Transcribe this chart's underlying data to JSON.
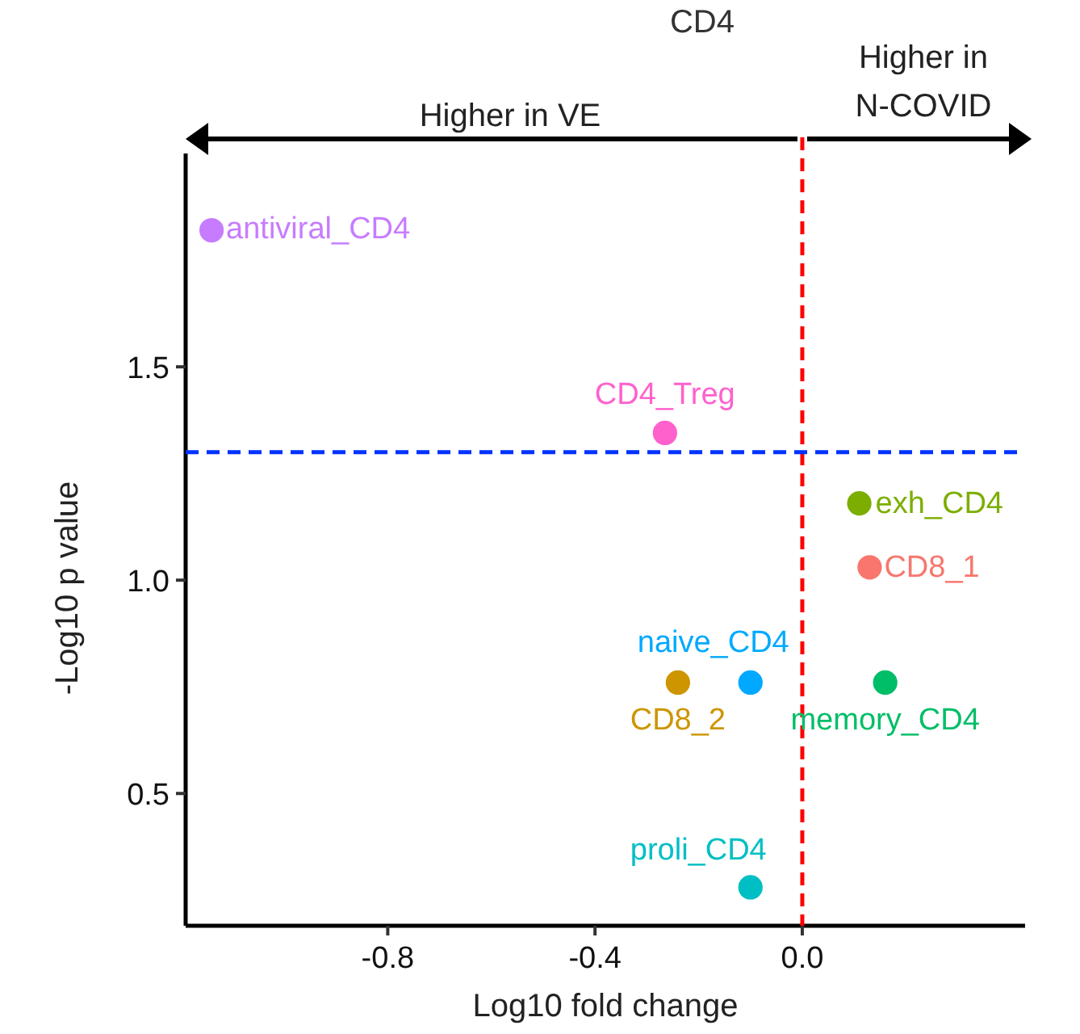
{
  "chart_data": {
    "type": "scatter",
    "title": "CD4",
    "xlabel": "Log10 fold change",
    "ylabel": "-Log10 p value",
    "annotations": [
      "Higher in VE",
      "Higher in\nN-COVID"
    ],
    "xlim": [
      -1.19,
      0.43
    ],
    "xticks": [
      -0.8,
      -0.4,
      {
        "value": 0,
        "label": "0.0"
      }
    ],
    "ylim": [
      0.19,
      2.0
    ],
    "yticks": [
      0.5,
      {
        "value": 1,
        "label": "1.0"
      },
      1.5
    ],
    "grid": false,
    "marker": "circle",
    "ref_lines": [
      {
        "axis": "x",
        "value": 0,
        "color": "#ff0000",
        "line_style": "dashed"
      },
      {
        "axis": "y",
        "value": 1.3,
        "color": "#0033ff",
        "line_style": "dashed"
      }
    ],
    "series": [
      {
        "name": "antiviral_CD4",
        "color": "#c77cff",
        "x": [
          -1.14
        ],
        "values": [
          1.82
        ]
      },
      {
        "name": "CD4_Treg",
        "color": "#ff61cc",
        "x": [
          -0.265
        ],
        "values": [
          1.345
        ]
      },
      {
        "name": "exh_CD4",
        "color": "#7cae00",
        "x": [
          0.11
        ],
        "values": [
          1.18
        ]
      },
      {
        "name": "CD8_1",
        "color": "#f8766d",
        "x": [
          0.13
        ],
        "values": [
          1.03
        ]
      },
      {
        "name": "naive_CD4",
        "color": "#00a9ff",
        "x": [
          -0.1
        ],
        "values": [
          0.76
        ]
      },
      {
        "name": "CD8_2",
        "color": "#cd9600",
        "x": [
          -0.24
        ],
        "values": [
          0.76
        ]
      },
      {
        "name": "memory_CD4",
        "color": "#00be67",
        "x": [
          0.16
        ],
        "values": [
          0.76
        ]
      },
      {
        "name": "proli_CD4",
        "color": "#00bfc4",
        "x": [
          -0.1
        ],
        "values": [
          0.28
        ]
      }
    ]
  }
}
